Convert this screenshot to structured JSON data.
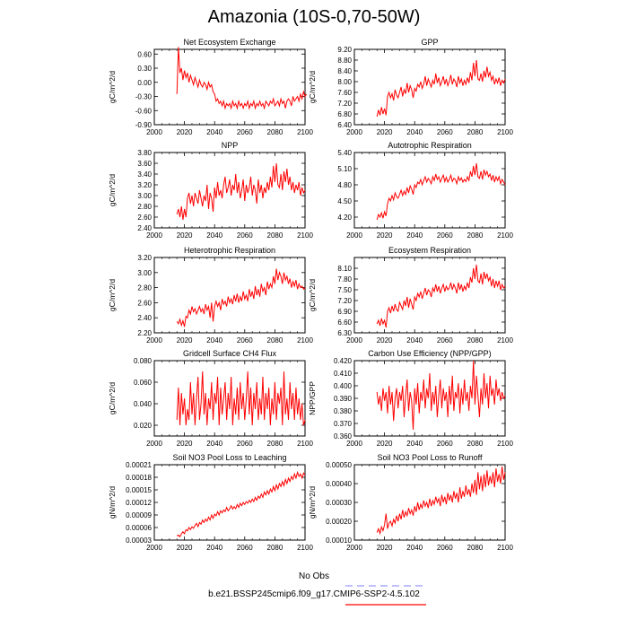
{
  "page_title": "Amazonia (10S-0,70-50W)",
  "colors": {
    "series": "#ff0000",
    "obs_line": "#9999ff",
    "axis": "#000000"
  },
  "legend": {
    "obs_label": "No Obs",
    "model_label": "b.e21.BSSP245cmip6.f09_g17.CMIP6-SSP2-4.5.102"
  },
  "chart_data": [
    {
      "type": "line",
      "title": "Net Ecosystem Exchange",
      "ylabel": "gC/m^2/d",
      "xlim": [
        2000,
        2100
      ],
      "ylim": [
        -0.9,
        0.7
      ],
      "xticks": [
        "2000",
        "2020",
        "2040",
        "2060",
        "2080",
        "2100"
      ],
      "yticks": [
        -0.9,
        -0.6,
        -0.3,
        0.0,
        0.3,
        0.6
      ],
      "ytick_labels": [
        "-0.90",
        "-0.60",
        "-0.30",
        "0.00",
        "0.30",
        "0.60"
      ],
      "x_start": 2015,
      "values": [
        -0.25,
        0.75,
        0.2,
        0.3,
        0.05,
        0.25,
        0.1,
        0.2,
        0.0,
        0.15,
        0.05,
        -0.05,
        0.1,
        0.0,
        -0.1,
        0.05,
        -0.05,
        -0.1,
        0.0,
        -0.05,
        -0.15,
        0.0,
        -0.1,
        -0.05,
        -0.2,
        -0.25,
        -0.4,
        -0.35,
        -0.45,
        -0.4,
        -0.5,
        -0.4,
        -0.55,
        -0.45,
        -0.5,
        -0.45,
        -0.55,
        -0.4,
        -0.5,
        -0.45,
        -0.55,
        -0.4,
        -0.5,
        -0.45,
        -0.55,
        -0.45,
        -0.5,
        -0.4,
        -0.55,
        -0.45,
        -0.5,
        -0.4,
        -0.55,
        -0.45,
        -0.5,
        -0.4,
        -0.5,
        -0.45,
        -0.55,
        -0.4,
        -0.45,
        -0.5,
        -0.4,
        -0.45,
        -0.35,
        -0.5,
        -0.45,
        -0.4,
        -0.5,
        -0.35,
        -0.45,
        -0.4,
        -0.55,
        -0.4,
        -0.35,
        -0.4,
        -0.5,
        -0.3,
        -0.4,
        -0.35,
        -0.3,
        -0.4,
        -0.25,
        -0.35,
        -0.2,
        -0.3,
        -0.25
      ]
    },
    {
      "type": "line",
      "title": "GPP",
      "ylabel": "gC/m^2/d",
      "xlim": [
        2000,
        2100
      ],
      "ylim": [
        6.4,
        9.2
      ],
      "xticks": [
        "2000",
        "2020",
        "2040",
        "2060",
        "2080",
        "2100"
      ],
      "yticks": [
        6.4,
        6.8,
        7.2,
        7.6,
        8.0,
        8.4,
        8.8,
        9.2
      ],
      "ytick_labels": [
        "6.40",
        "6.80",
        "7.20",
        "7.60",
        "8.00",
        "8.40",
        "8.80",
        "9.20"
      ],
      "x_start": 2015,
      "values": [
        6.7,
        6.95,
        6.75,
        7.05,
        6.8,
        7.0,
        6.75,
        7.45,
        7.6,
        7.4,
        7.55,
        7.3,
        7.7,
        7.5,
        7.4,
        7.6,
        7.8,
        7.45,
        7.7,
        7.55,
        7.95,
        7.6,
        7.85,
        7.7,
        7.4,
        7.75,
        7.65,
        7.9,
        7.8,
        8.0,
        7.75,
        7.9,
        8.2,
        7.85,
        8.1,
        7.95,
        7.8,
        8.05,
        7.9,
        8.3,
        7.95,
        8.15,
        7.85,
        8.0,
        8.2,
        7.9,
        8.1,
        7.85,
        8.0,
        8.25,
        7.9,
        8.1,
        8.0,
        7.8,
        8.2,
        7.95,
        8.1,
        7.85,
        8.05,
        7.9,
        8.15,
        7.95,
        8.35,
        8.05,
        8.7,
        8.2,
        8.8,
        8.1,
        8.05,
        8.3,
        8.0,
        8.4,
        8.15,
        8.55,
        8.2,
        8.35,
        8.05,
        8.2,
        7.9,
        8.1,
        7.95,
        8.15,
        7.85,
        8.05,
        7.95,
        8.1
      ]
    },
    {
      "type": "line",
      "title": "NPP",
      "ylabel": "gC/m^2/d",
      "xlim": [
        2000,
        2100
      ],
      "ylim": [
        2.4,
        3.8
      ],
      "xticks": [
        "2000",
        "2020",
        "2040",
        "2060",
        "2080",
        "2100"
      ],
      "yticks": [
        2.4,
        2.6,
        2.8,
        3.0,
        3.2,
        3.4,
        3.6,
        3.8
      ],
      "ytick_labels": [
        "2.40",
        "2.60",
        "2.80",
        "3.00",
        "3.20",
        "3.40",
        "3.60",
        "3.80"
      ],
      "x_start": 2015,
      "values": [
        2.65,
        2.75,
        2.6,
        2.8,
        2.55,
        2.75,
        2.6,
        2.95,
        3.05,
        2.85,
        3.0,
        2.8,
        3.05,
        2.95,
        2.85,
        3.1,
        2.95,
        2.8,
        3.0,
        2.9,
        3.2,
        2.75,
        3.05,
        2.95,
        2.7,
        3.15,
        2.95,
        3.25,
        3.0,
        3.1,
        2.95,
        3.2,
        3.35,
        3.05,
        3.15,
        3.3,
        3.0,
        3.2,
        3.1,
        3.4,
        3.05,
        3.25,
        2.95,
        3.1,
        3.3,
        2.9,
        3.2,
        3.05,
        3.15,
        3.35,
        3.0,
        3.2,
        3.1,
        2.85,
        3.3,
        3.05,
        3.2,
        2.95,
        3.15,
        3.05,
        3.25,
        3.1,
        3.35,
        3.15,
        3.55,
        3.25,
        3.6,
        3.2,
        3.15,
        3.4,
        3.1,
        3.45,
        3.25,
        3.5,
        3.2,
        3.35,
        3.1,
        3.25,
        3.05,
        3.2,
        3.1,
        3.25,
        3.0,
        3.15,
        3.05,
        3.1
      ]
    },
    {
      "type": "line",
      "title": "Autotrophic Respiration",
      "ylabel": "",
      "xlim": [
        2000,
        2100
      ],
      "ylim": [
        4.0,
        5.4
      ],
      "xticks": [
        "2000",
        "2020",
        "2040",
        "2060",
        "2080",
        "2100"
      ],
      "yticks": [
        4.2,
        4.5,
        4.8,
        5.1,
        5.4
      ],
      "ytick_labels": [
        "4.20",
        "4.50",
        "4.80",
        "5.10",
        "5.40"
      ],
      "x_start": 2015,
      "values": [
        4.15,
        4.25,
        4.2,
        4.28,
        4.18,
        4.3,
        4.22,
        4.45,
        4.55,
        4.5,
        4.6,
        4.52,
        4.65,
        4.58,
        4.55,
        4.62,
        4.7,
        4.6,
        4.68,
        4.62,
        4.75,
        4.65,
        4.78,
        4.72,
        4.62,
        4.8,
        4.75,
        4.85,
        4.82,
        4.9,
        4.8,
        4.88,
        4.95,
        4.85,
        4.92,
        4.88,
        4.82,
        4.95,
        4.88,
        5.0,
        4.9,
        4.95,
        4.85,
        4.92,
        4.98,
        4.86,
        4.94,
        4.85,
        4.9,
        4.98,
        4.86,
        4.92,
        4.9,
        4.82,
        4.95,
        4.88,
        4.93,
        4.85,
        4.9,
        4.86,
        4.95,
        4.88,
        5.05,
        4.95,
        5.15,
        4.98,
        5.2,
        4.95,
        4.92,
        5.05,
        4.9,
        5.08,
        4.98,
        5.05,
        4.95,
        5.0,
        4.88,
        4.98,
        4.85,
        4.95,
        4.88,
        4.95,
        4.82,
        4.9,
        4.85,
        4.8
      ]
    },
    {
      "type": "line",
      "title": "Heterotrophic Respiration",
      "ylabel": "gC/m^2/d",
      "xlim": [
        2000,
        2100
      ],
      "ylim": [
        2.2,
        3.2
      ],
      "xticks": [
        "2000",
        "2020",
        "2040",
        "2060",
        "2080",
        "2100"
      ],
      "yticks": [
        2.2,
        2.4,
        2.6,
        2.8,
        3.0,
        3.2
      ],
      "ytick_labels": [
        "2.20",
        "2.40",
        "2.60",
        "2.80",
        "3.00",
        "3.20"
      ],
      "x_start": 2015,
      "values": [
        2.35,
        2.32,
        2.38,
        2.3,
        2.36,
        2.28,
        2.42,
        2.4,
        2.5,
        2.45,
        2.55,
        2.48,
        2.52,
        2.45,
        2.5,
        2.55,
        2.48,
        2.52,
        2.45,
        2.58,
        2.5,
        2.55,
        2.4,
        2.6,
        2.35,
        2.55,
        2.62,
        2.55,
        2.6,
        2.5,
        2.65,
        2.58,
        2.62,
        2.55,
        2.68,
        2.6,
        2.65,
        2.58,
        2.7,
        2.62,
        2.72,
        2.6,
        2.68,
        2.62,
        2.75,
        2.65,
        2.7,
        2.62,
        2.78,
        2.68,
        2.75,
        2.65,
        2.82,
        2.7,
        2.78,
        2.68,
        2.85,
        2.75,
        2.8,
        2.7,
        2.88,
        2.78,
        2.85,
        2.8,
        2.95,
        2.85,
        3.05,
        2.9,
        3.0,
        2.95,
        2.85,
        3.0,
        2.9,
        2.95,
        2.85,
        2.92,
        2.8,
        2.88,
        2.82,
        2.9,
        2.78,
        2.85,
        2.8,
        2.82,
        2.78,
        2.8
      ]
    },
    {
      "type": "line",
      "title": "Ecosystem Respiration",
      "ylabel": "gC/m^2/d",
      "xlim": [
        2000,
        2100
      ],
      "ylim": [
        6.3,
        8.4
      ],
      "xticks": [
        "2000",
        "2020",
        "2040",
        "2060",
        "2080",
        "2100"
      ],
      "yticks": [
        6.3,
        6.6,
        6.9,
        7.2,
        7.5,
        7.8,
        8.1
      ],
      "ytick_labels": [
        "6.30",
        "6.60",
        "6.90",
        "7.20",
        "7.50",
        "7.80",
        "8.10"
      ],
      "x_start": 2015,
      "values": [
        6.55,
        6.65,
        6.5,
        6.7,
        6.55,
        6.65,
        6.45,
        6.9,
        7.0,
        6.85,
        7.05,
        6.9,
        7.1,
        6.95,
        6.9,
        7.15,
        7.05,
        6.95,
        7.2,
        7.05,
        7.3,
        7.0,
        7.25,
        7.1,
        6.95,
        7.3,
        7.2,
        7.4,
        7.3,
        7.45,
        7.25,
        7.4,
        7.55,
        7.35,
        7.5,
        7.45,
        7.3,
        7.55,
        7.45,
        7.65,
        7.45,
        7.6,
        7.4,
        7.55,
        7.65,
        7.45,
        7.6,
        7.5,
        7.55,
        7.7,
        7.5,
        7.65,
        7.55,
        7.4,
        7.7,
        7.5,
        7.65,
        7.45,
        7.6,
        7.5,
        7.7,
        7.55,
        7.85,
        7.7,
        8.1,
        7.8,
        8.2,
        7.75,
        7.7,
        7.95,
        7.65,
        8.0,
        7.8,
        7.95,
        7.75,
        7.85,
        7.6,
        7.8,
        7.55,
        7.75,
        7.6,
        7.75,
        7.5,
        7.65,
        7.55,
        7.6
      ]
    },
    {
      "type": "line",
      "title": "Gridcell Surface CH4 Flux",
      "ylabel": "gC/m^2/d",
      "xlim": [
        2000,
        2100
      ],
      "ylim": [
        0.01,
        0.08
      ],
      "xticks": [
        "2000",
        "2020",
        "2040",
        "2060",
        "2080",
        "2100"
      ],
      "yticks": [
        0.02,
        0.04,
        0.06,
        0.08
      ],
      "ytick_labels": [
        "0.020",
        "0.040",
        "0.060",
        "0.080"
      ],
      "x_start": 2015,
      "values": [
        0.025,
        0.055,
        0.02,
        0.05,
        0.03,
        0.045,
        0.02,
        0.035,
        0.025,
        0.06,
        0.03,
        0.05,
        0.02,
        0.045,
        0.065,
        0.025,
        0.04,
        0.07,
        0.03,
        0.05,
        0.02,
        0.045,
        0.035,
        0.06,
        0.025,
        0.05,
        0.04,
        0.065,
        0.02,
        0.055,
        0.03,
        0.045,
        0.06,
        0.025,
        0.05,
        0.035,
        0.065,
        0.02,
        0.045,
        0.03,
        0.055,
        0.025,
        0.06,
        0.035,
        0.05,
        0.025,
        0.045,
        0.07,
        0.03,
        0.055,
        0.02,
        0.05,
        0.035,
        0.06,
        0.025,
        0.045,
        0.03,
        0.065,
        0.025,
        0.05,
        0.035,
        0.055,
        0.02,
        0.045,
        0.03,
        0.06,
        0.025,
        0.05,
        0.04,
        0.055,
        0.02,
        0.07,
        0.03,
        0.045,
        0.025,
        0.06,
        0.035,
        0.05,
        0.025,
        0.055,
        0.03,
        0.045,
        0.025,
        0.04,
        0.02,
        0.025
      ]
    },
    {
      "type": "line",
      "title": "Carbon Use Efficiency (NPP/GPP)",
      "ylabel": "NPP/GPP",
      "xlim": [
        2000,
        2100
      ],
      "ylim": [
        0.36,
        0.42
      ],
      "xticks": [
        "2000",
        "2020",
        "2040",
        "2060",
        "2080",
        "2100"
      ],
      "yticks": [
        0.36,
        0.37,
        0.38,
        0.39,
        0.4,
        0.41,
        0.42
      ],
      "ytick_labels": [
        "0.360",
        "0.370",
        "0.380",
        "0.390",
        "0.400",
        "0.410",
        "0.420"
      ],
      "x_start": 2015,
      "values": [
        0.395,
        0.385,
        0.392,
        0.38,
        0.398,
        0.388,
        0.395,
        0.378,
        0.4,
        0.385,
        0.395,
        0.372,
        0.39,
        0.398,
        0.382,
        0.395,
        0.388,
        0.4,
        0.375,
        0.392,
        0.405,
        0.38,
        0.395,
        0.388,
        0.365,
        0.398,
        0.385,
        0.402,
        0.378,
        0.395,
        0.388,
        0.405,
        0.382,
        0.398,
        0.39,
        0.41,
        0.38,
        0.395,
        0.385,
        0.4,
        0.375,
        0.392,
        0.405,
        0.382,
        0.398,
        0.388,
        0.395,
        0.375,
        0.4,
        0.385,
        0.408,
        0.38,
        0.395,
        0.39,
        0.402,
        0.378,
        0.398,
        0.385,
        0.405,
        0.388,
        0.395,
        0.38,
        0.4,
        0.39,
        0.42,
        0.385,
        0.408,
        0.392,
        0.375,
        0.398,
        0.385,
        0.41,
        0.39,
        0.402,
        0.382,
        0.408,
        0.392,
        0.398,
        0.385,
        0.405,
        0.392,
        0.398,
        0.388,
        0.395,
        0.39,
        0.392
      ]
    },
    {
      "type": "line",
      "title": "Soil NO3 Pool Loss to Leaching",
      "ylabel": "gN/m^2/d",
      "xlim": [
        2000,
        2100
      ],
      "ylim": [
        3e-05,
        0.00021
      ],
      "xticks": [
        "2000",
        "2020",
        "2040",
        "2060",
        "2080",
        "2100"
      ],
      "yticks": [
        3e-05,
        6e-05,
        9e-05,
        0.00012,
        0.00015,
        0.00018,
        0.00021
      ],
      "ytick_labels": [
        "0.00003",
        "0.00006",
        "0.00009",
        "0.00012",
        "0.00015",
        "0.00018",
        "0.00021"
      ],
      "x_start": 2015,
      "values": [
        4e-05,
        4.2e-05,
        3.8e-05,
        4.5e-05,
        5e-05,
        4.5e-05,
        5.5e-05,
        5.2e-05,
        6e-05,
        5.5e-05,
        6.2e-05,
        5.8e-05,
        6.5e-05,
        7e-05,
        6.2e-05,
        7.2e-05,
        6.8e-05,
        7.8e-05,
        7.2e-05,
        8e-05,
        7.5e-05,
        8.5e-05,
        7.8e-05,
        9e-05,
        8.2e-05,
        9.2e-05,
        8.8e-05,
        9.8e-05,
        9e-05,
        0.0001,
        9.5e-05,
        0.000102,
        9.8e-05,
        0.000108,
        0.0001,
        0.000105,
        0.000112,
        0.000104,
        0.00011,
        0.000105,
        0.000115,
        0.000108,
        0.000118,
        0.000112,
        0.00012,
        0.000115,
        0.000122,
        0.000118,
        0.000125,
        0.00012,
        0.000128,
        0.000122,
        0.000132,
        0.000125,
        0.000135,
        0.00013,
        0.00014,
        0.000132,
        0.000145,
        0.000138,
        0.000148,
        0.00014,
        0.000152,
        0.000145,
        0.000158,
        0.000148,
        0.000162,
        0.000152,
        0.000165,
        0.000158,
        0.00017,
        0.00016,
        0.000175,
        0.000165,
        0.000178,
        0.00017,
        0.000182,
        0.000175,
        0.000188,
        0.000178,
        0.000192,
        0.000182,
        0.000188,
        0.000178,
        0.00019,
        0.000185
      ]
    },
    {
      "type": "line",
      "title": "Soil NO3 Pool Loss to Runoff",
      "ylabel": "gN/m^2/d",
      "xlim": [
        2000,
        2100
      ],
      "ylim": [
        0.0001,
        0.0005
      ],
      "xticks": [
        "2000",
        "2020",
        "2040",
        "2060",
        "2080",
        "2100"
      ],
      "yticks": [
        0.0001,
        0.0002,
        0.0003,
        0.0004,
        0.0005
      ],
      "ytick_labels": [
        "0.00010",
        "0.00020",
        "0.00030",
        "0.00040",
        "0.00050"
      ],
      "x_start": 2015,
      "values": [
        0.00014,
        0.00016,
        0.000135,
        0.00017,
        0.00015,
        0.00018,
        0.00024,
        0.00016,
        0.00019,
        0.0002,
        0.000175,
        0.00021,
        0.00019,
        0.00023,
        0.0002,
        0.00024,
        0.00021,
        0.00026,
        0.00022,
        0.00025,
        0.00023,
        0.00027,
        0.00024,
        0.00026,
        0.00023,
        0.00028,
        0.00025,
        0.0003,
        0.00026,
        0.00029,
        0.00027,
        0.00031,
        0.00028,
        0.0003,
        0.00027,
        0.00032,
        0.00028,
        0.00031,
        0.00029,
        0.00033,
        0.0003,
        0.00032,
        0.00028,
        0.00034,
        0.0003,
        0.00033,
        0.00029,
        0.00035,
        0.00031,
        0.00034,
        0.0003,
        0.00036,
        0.00032,
        0.00035,
        0.0003,
        0.00038,
        0.00032,
        0.00036,
        0.00033,
        0.00039,
        0.00034,
        0.00037,
        0.00033,
        0.0004,
        0.00035,
        0.00042,
        0.00034,
        0.00046,
        0.00037,
        0.00044,
        0.00036,
        0.00045,
        0.00038,
        0.00047,
        0.00039,
        0.00044,
        0.0004,
        0.00046,
        0.00038,
        0.00048,
        0.00041,
        0.00045,
        0.0004,
        0.00049,
        0.00042,
        0.00046
      ]
    }
  ]
}
